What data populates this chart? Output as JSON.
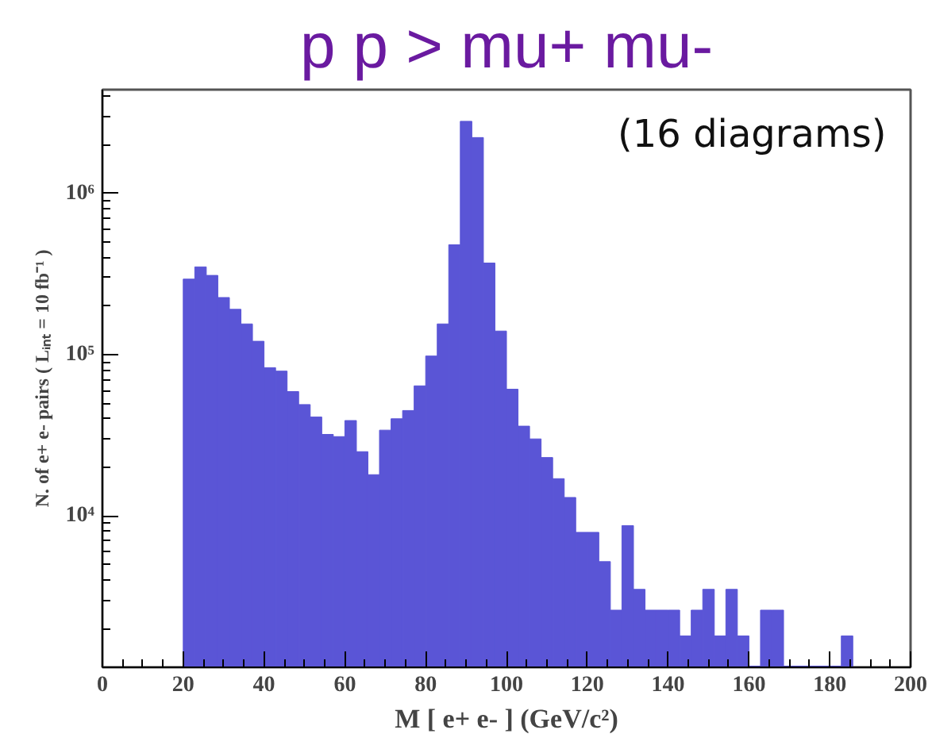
{
  "chart_data": {
    "type": "histogram",
    "title": "p p > mu+ mu-",
    "xlabel": "M [ e+ e- ] (GeV/c²)",
    "ylabel": "N. of e+ e- pairs ( Lᵢₙₜ = 10 fb⁻¹ )",
    "annotations": [
      "(16 diagrams)"
    ],
    "bins": [
      20,
      22.86,
      25.71,
      28.57,
      31.43,
      34.29,
      37.14,
      40,
      42.86,
      45.71,
      48.57,
      51.43,
      54.29,
      57.14,
      60,
      62.86,
      65.71,
      68.57,
      71.43,
      74.29,
      77.14,
      80,
      82.86,
      85.71,
      88.57,
      91.43,
      94.29,
      97.14,
      100,
      102.86,
      105.71,
      108.57,
      111.43,
      114.29,
      117.14,
      120,
      122.86,
      125.71,
      128.57,
      131.43,
      134.29,
      137.14,
      140,
      142.86,
      145.71,
      148.57,
      151.43,
      154.29,
      157.14,
      160,
      162.86,
      165.71,
      168.57,
      171.43,
      174.29,
      177.14,
      180,
      182.86,
      185.71
    ],
    "values": [
      294000,
      350000,
      310000,
      226000,
      191000,
      155000,
      121000,
      83000,
      79000,
      59000,
      49000,
      41000,
      32000,
      31000,
      39000,
      25000,
      18000,
      34000,
      40000,
      45000,
      64000,
      98000,
      155000,
      480000,
      2800000,
      2220000,
      370000,
      140000,
      61000,
      36000,
      30000,
      23000,
      17000,
      13000,
      7900,
      7900,
      5200,
      2600,
      8700,
      3500,
      2600,
      2600,
      2600,
      1800,
      2600,
      3500,
      1800,
      3500,
      1800,
      null,
      2600,
      2600,
      null,
      null,
      null,
      null,
      null,
      1800
    ],
    "color": "#5a55d6",
    "log": "y",
    "grid": false,
    "xlim": [
      0,
      200
    ],
    "xticks": [
      0,
      20,
      40,
      60,
      80,
      100,
      120,
      140,
      160,
      180,
      200
    ],
    "ylim": [
      1150,
      4400000
    ],
    "yticks": [
      {
        "value": 10000,
        "label": "10⁴"
      },
      {
        "value": 100000,
        "label": "10⁵"
      },
      {
        "value": 1000000,
        "label": "10⁶"
      }
    ]
  }
}
